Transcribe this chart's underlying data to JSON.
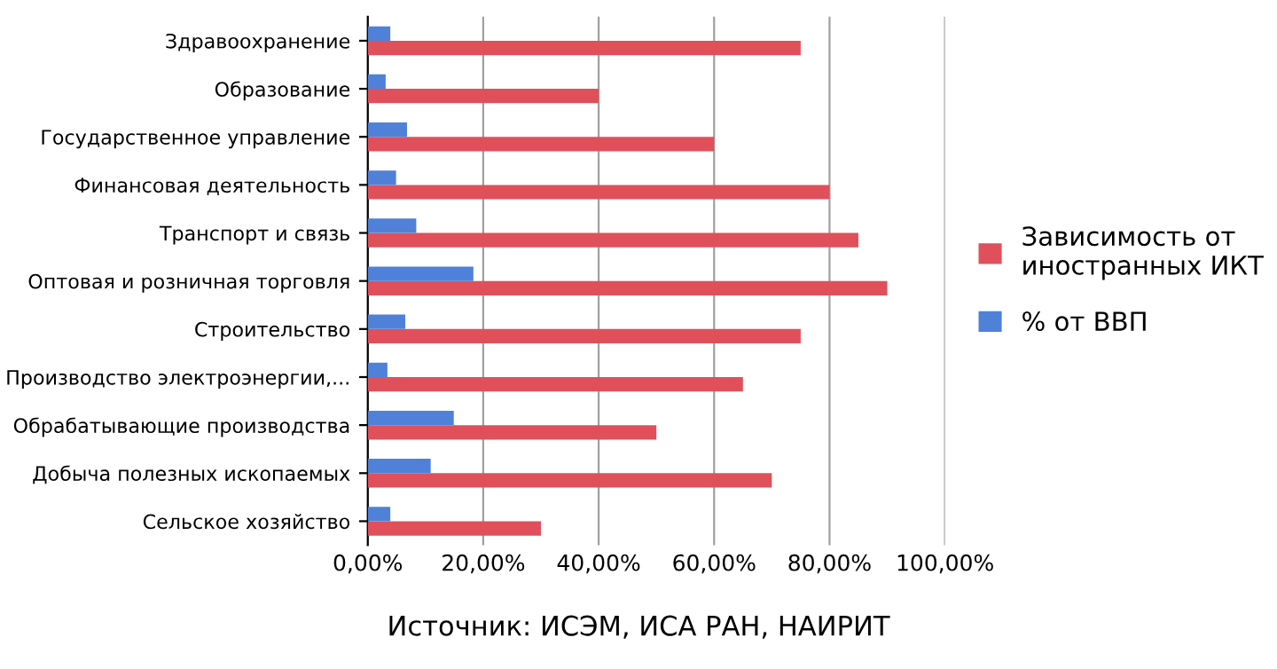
{
  "chart_data": {
    "type": "bar",
    "orientation": "horizontal",
    "categories": [
      "Здравоохранение",
      "Образование",
      "Государственное управление",
      "Финансовая деятельность",
      "Транспорт и связь",
      "Оптовая и розничная торговля",
      "Строительство",
      "Производство электроэнергии,...",
      "Обрабатывающие производства",
      "Добыча полезных ископаемых",
      "Сельское хозяйство"
    ],
    "series": [
      {
        "name": "Зависимость от иностранных ИКТ",
        "color": "#e0505a",
        "values": [
          75,
          40,
          60,
          80,
          85,
          90,
          75,
          65,
          50,
          70,
          30
        ]
      },
      {
        "name": "% от ВВП",
        "color": "#4f81d9",
        "values": [
          3.9,
          3.1,
          6.8,
          4.9,
          8.4,
          18.3,
          6.5,
          3.4,
          14.9,
          10.9,
          3.9
        ]
      }
    ],
    "xlim": [
      0,
      100
    ],
    "xticks": [
      {
        "value": 0,
        "label": "0,00%"
      },
      {
        "value": 20,
        "label": "20,00%"
      },
      {
        "value": 40,
        "label": "40,00%"
      },
      {
        "value": 60,
        "label": "60,00%"
      },
      {
        "value": 80,
        "label": "80,00%"
      },
      {
        "value": 100,
        "label": "100,00%"
      }
    ],
    "grid": "x",
    "legend": "right",
    "annotations": [
      "Источник: ИСЭМ, ИСА РАН, НАИРИТ"
    ]
  }
}
